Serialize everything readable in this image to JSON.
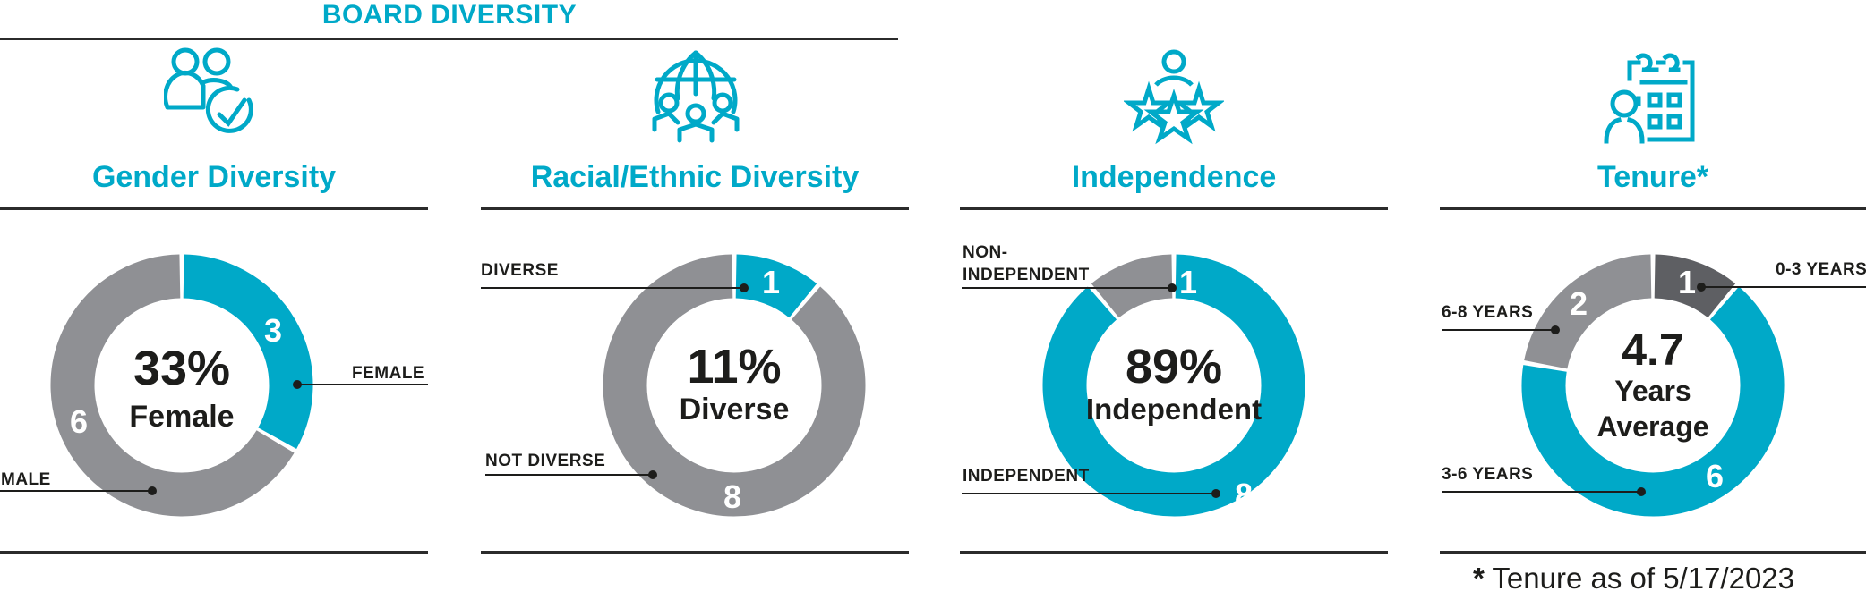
{
  "header": {
    "title": "BOARD DIVERSITY"
  },
  "colors": {
    "accent": "#00a9c8",
    "gray": "#8f9094",
    "dark_gray": "#5e5f63",
    "text": "#1d1d1b"
  },
  "sections": [
    {
      "title": "Gender Diversity",
      "icon": "people-check-icon",
      "center_value": "33%",
      "center_label": "Female",
      "labels": {
        "female": "FEMALE",
        "male": "MALE"
      },
      "segments": [
        {
          "name": "FEMALE",
          "value": "3"
        },
        {
          "name": "MALE",
          "value": "6"
        }
      ]
    },
    {
      "title": "Racial/Ethnic Diversity",
      "icon": "globe-people-icon",
      "center_value": "11%",
      "center_label": "Diverse",
      "labels": {
        "diverse": "DIVERSE",
        "not_diverse": "NOT DIVERSE"
      },
      "segments": [
        {
          "name": "DIVERSE",
          "value": "1"
        },
        {
          "name": "NOT DIVERSE",
          "value": "8"
        }
      ]
    },
    {
      "title": "Independence",
      "icon": "person-stars-icon",
      "center_value": "89%",
      "center_label": "Independent",
      "labels": {
        "non_independent_1": "NON-",
        "non_independent_2": "INDEPENDENT",
        "independent": "INDEPENDENT"
      },
      "segments": [
        {
          "name": "NON-INDEPENDENT",
          "value": "1"
        },
        {
          "name": "INDEPENDENT",
          "value": "8"
        }
      ]
    },
    {
      "title": "Tenure*",
      "icon": "calendar-person-icon",
      "center_value": "4.7",
      "center_label_1": "Years",
      "center_label_2": "Average",
      "labels": {
        "y0_3": "0-3 YEARS",
        "y6_8": "6-8 YEARS",
        "y3_6": "3-6 YEARS"
      },
      "segments": [
        {
          "name": "0-3 YEARS",
          "value": "1"
        },
        {
          "name": "3-6 YEARS",
          "value": "6"
        },
        {
          "name": "6-8 YEARS",
          "value": "2"
        }
      ]
    }
  ],
  "footnote": {
    "star": "*",
    "text": " Tenure as of 5/17/2023"
  },
  "chart_data": [
    {
      "type": "pie",
      "title": "Gender Diversity",
      "categories": [
        "Female",
        "Male"
      ],
      "values": [
        3,
        6
      ],
      "center_text": "33% Female",
      "colors": [
        "#00a9c8",
        "#8f9094"
      ]
    },
    {
      "type": "pie",
      "title": "Racial/Ethnic Diversity",
      "categories": [
        "Diverse",
        "Not Diverse"
      ],
      "values": [
        1,
        8
      ],
      "center_text": "11% Diverse",
      "colors": [
        "#00a9c8",
        "#8f9094"
      ]
    },
    {
      "type": "pie",
      "title": "Independence",
      "categories": [
        "Non-Independent",
        "Independent"
      ],
      "values": [
        1,
        8
      ],
      "center_text": "89% Independent",
      "colors": [
        "#8f9094",
        "#00a9c8"
      ]
    },
    {
      "type": "pie",
      "title": "Tenure*",
      "categories": [
        "0-3 Years",
        "3-6 Years",
        "6-8 Years"
      ],
      "values": [
        1,
        6,
        2
      ],
      "center_text": "4.7 Years Average",
      "colors": [
        "#5e5f63",
        "#00a9c8",
        "#8f9094"
      ],
      "annotation": "* Tenure as of 5/17/2023"
    }
  ]
}
